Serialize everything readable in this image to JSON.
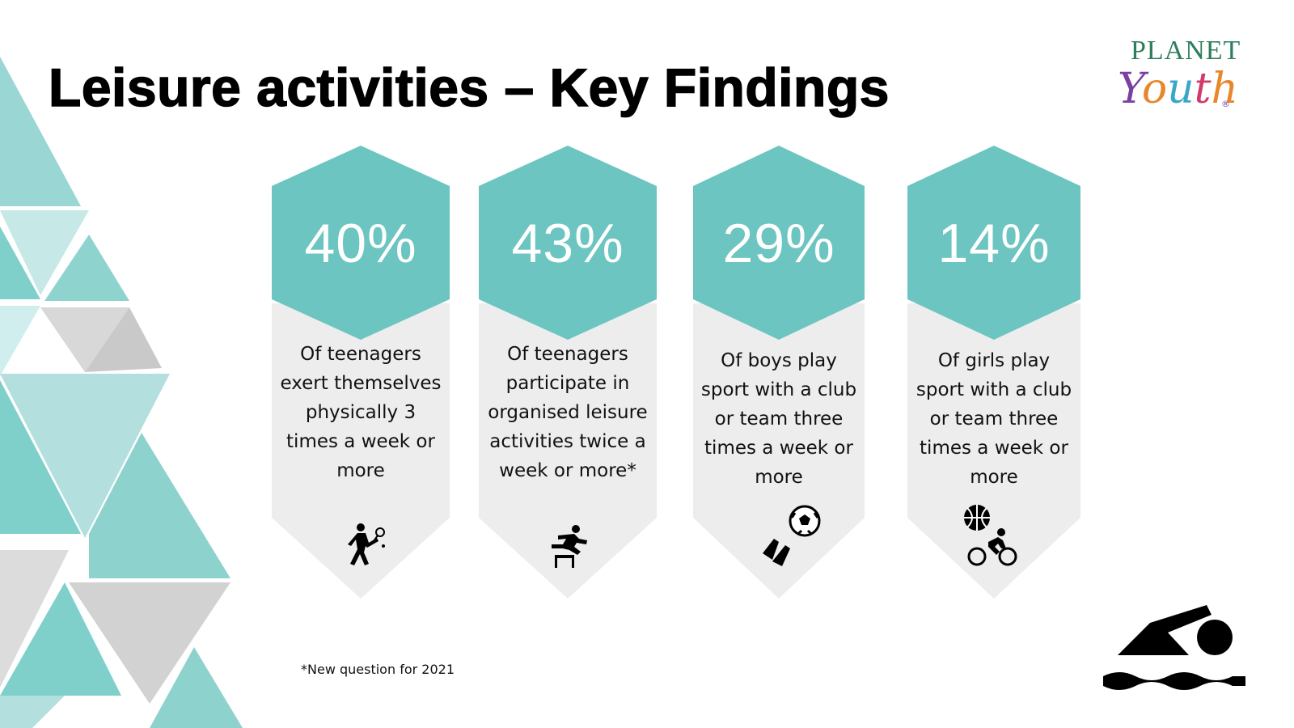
{
  "slide": {
    "title": "Leisure activities – Key Findings",
    "footnote": "*New question for 2021"
  },
  "logo": {
    "planet": "PLANET",
    "youth_letters": [
      "Y",
      "o",
      "u",
      "t",
      "h"
    ],
    "registered": "®"
  },
  "colors": {
    "teal": "#6cc5c1",
    "card_grey": "#ededed",
    "bg_teal_light": "#b3e0de",
    "bg_teal": "#7fcfcb",
    "bg_grey": "#dcdcdc"
  },
  "findings": [
    {
      "percent": "40%",
      "description": "Of teenagers exert themselves physically 3 times a week or more",
      "icon": "tennis-player-icon"
    },
    {
      "percent": "43%",
      "description": "Of teenagers participate in organised leisure activities twice a week or more*",
      "icon": "hurdler-icon"
    },
    {
      "percent": "29%",
      "description": "Of boys play sport with a club or team three times a week or more",
      "icon": "soccer-flippers-icon"
    },
    {
      "percent": "14%",
      "description": "Of girls play sport with a club or team three times a week or more",
      "icon": "basketball-cyclist-icon"
    }
  ],
  "decoration": {
    "swimmer": "swimmer-icon"
  }
}
